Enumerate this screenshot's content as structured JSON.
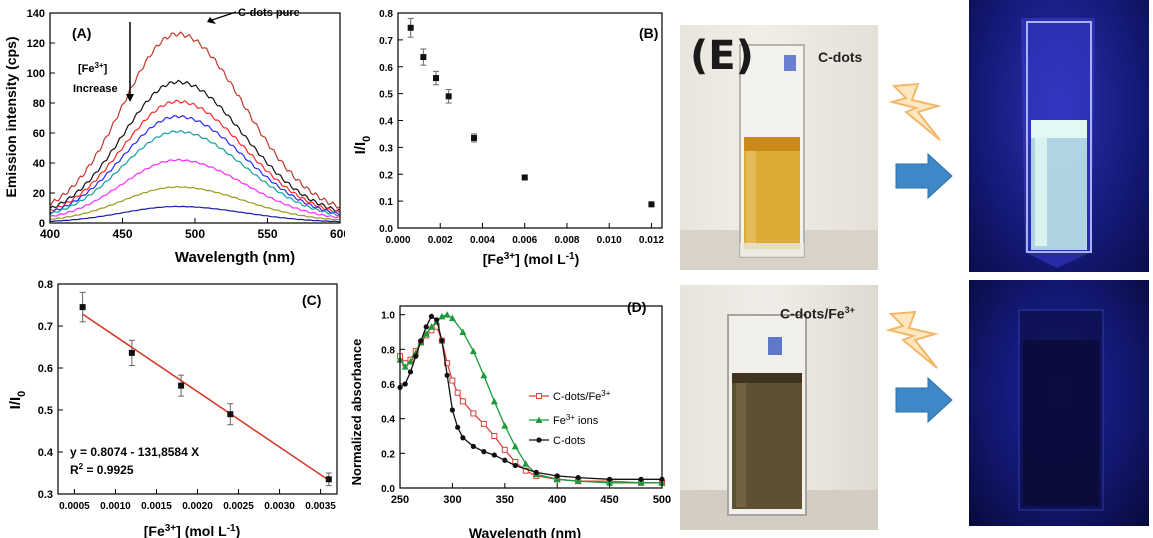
{
  "chart_data": [
    {
      "panel": "(A)",
      "type": "line",
      "xlabel": "Wavelength (nm)",
      "ylabel": "Emission intensity (cps)",
      "xlim": [
        400,
        600
      ],
      "ylim": [
        0,
        140
      ],
      "xticks": [
        400,
        450,
        500,
        550,
        600
      ],
      "yticks": [
        0,
        20,
        40,
        60,
        80,
        100,
        120,
        140
      ],
      "annotations": {
        "pure": "C-dots pure",
        "ion": "[Fe",
        "ion_sup": "3+",
        "ion_close": "]",
        "increase": "Increase"
      },
      "series": [
        {
          "color": "#c0392b",
          "peak_x": 488,
          "peak": 126
        },
        {
          "color": "#111111",
          "peak_x": 488,
          "peak": 94
        },
        {
          "color": "#ff2a2a",
          "peak_x": 488,
          "peak": 81
        },
        {
          "color": "#2a2aff",
          "peak_x": 488,
          "peak": 71
        },
        {
          "color": "#12a0a0",
          "peak_x": 488,
          "peak": 61
        },
        {
          "color": "#ff2aff",
          "peak_x": 488,
          "peak": 42
        },
        {
          "color": "#9a9a1a",
          "peak_x": 488,
          "peak": 24
        },
        {
          "color": "#1a1aaa",
          "peak_x": 488,
          "peak": 11
        }
      ]
    },
    {
      "panel": "(B)",
      "type": "scatter",
      "xlabel": "[Fe",
      "xlabel_sup": "3+",
      "xlabel_rest": "] (mol L",
      "xlabel_exp": "-1",
      "xlabel_end": ")",
      "ylabel": "I/I",
      "ylabel_sub": "0",
      "xlim": [
        0.0,
        0.0125
      ],
      "ylim": [
        0.0,
        0.8
      ],
      "xticks": [
        "0.000",
        "0.002",
        "0.004",
        "0.006",
        "0.008",
        "0.010",
        "0.012"
      ],
      "yticks": [
        "0.0",
        "0.1",
        "0.2",
        "0.3",
        "0.4",
        "0.5",
        "0.6",
        "0.7",
        "0.8"
      ],
      "points": [
        {
          "x": 0.0006,
          "y": 0.745,
          "err": 0.035
        },
        {
          "x": 0.0012,
          "y": 0.636,
          "err": 0.03
        },
        {
          "x": 0.0018,
          "y": 0.558,
          "err": 0.025
        },
        {
          "x": 0.0024,
          "y": 0.49,
          "err": 0.025
        },
        {
          "x": 0.0036,
          "y": 0.335,
          "err": 0.015
        },
        {
          "x": 0.006,
          "y": 0.188,
          "err": 0.008
        },
        {
          "x": 0.012,
          "y": 0.088,
          "err": 0.005
        }
      ]
    },
    {
      "panel": "(C)",
      "type": "scatter",
      "xlabel": "[Fe",
      "xlabel_sup": "3+",
      "xlabel_rest": "] (mol L",
      "xlabel_exp": "-1",
      "xlabel_end": ")",
      "ylabel": "I/I",
      "ylabel_sub": "0",
      "xlim": [
        0.0003,
        0.0037
      ],
      "ylim": [
        0.3,
        0.8
      ],
      "xticks": [
        "0.0005",
        "0.0010",
        "0.0015",
        "0.0020",
        "0.0025",
        "0.0030",
        "0.0035"
      ],
      "yticks": [
        "0.3",
        "0.4",
        "0.5",
        "0.6",
        "0.7",
        "0.8"
      ],
      "fit": {
        "intercept": 0.8074,
        "slope": -131.8584,
        "color": "#d63a2a"
      },
      "equation": "y = 0.8074 - 131,8584 X",
      "r2_label": "R",
      "r2_sup": "2",
      "r2_value": " = 0.9925",
      "points": [
        {
          "x": 0.0006,
          "y": 0.745,
          "err": 0.035
        },
        {
          "x": 0.0012,
          "y": 0.636,
          "err": 0.03
        },
        {
          "x": 0.0018,
          "y": 0.558,
          "err": 0.025
        },
        {
          "x": 0.0024,
          "y": 0.49,
          "err": 0.025
        },
        {
          "x": 0.0036,
          "y": 0.335,
          "err": 0.015
        }
      ]
    },
    {
      "panel": "(D)",
      "type": "line",
      "xlabel": "Wavelength (nm)",
      "ylabel": "Normalized absorbance",
      "xlim": [
        250,
        500
      ],
      "ylim": [
        0.0,
        1.05
      ],
      "xticks": [
        250,
        300,
        350,
        400,
        450,
        500
      ],
      "yticks": [
        "0.0",
        "0.2",
        "0.4",
        "0.6",
        "0.8",
        "1.0"
      ],
      "legend_position": "middle-right",
      "series": [
        {
          "label": "C-dots/Fe",
          "sup": "3+",
          "color": "#e0403a",
          "marker": "open-square",
          "x": [
            250,
            255,
            260,
            265,
            270,
            275,
            280,
            285,
            290,
            295,
            300,
            305,
            310,
            320,
            330,
            340,
            350,
            360,
            370,
            380,
            400,
            420,
            450,
            480,
            500
          ],
          "y": [
            0.76,
            0.72,
            0.74,
            0.79,
            0.84,
            0.88,
            0.91,
            0.93,
            0.85,
            0.72,
            0.62,
            0.55,
            0.5,
            0.43,
            0.37,
            0.3,
            0.22,
            0.15,
            0.1,
            0.07,
            0.05,
            0.04,
            0.04,
            0.03,
            0.03
          ]
        },
        {
          "label": "Fe",
          "sup": "3+",
          "label_rest": " ions",
          "color": "#1a9a3a",
          "marker": "triangle",
          "x": [
            250,
            255,
            260,
            265,
            270,
            275,
            280,
            285,
            290,
            295,
            300,
            310,
            320,
            330,
            340,
            350,
            360,
            370,
            380,
            400,
            420,
            450,
            480,
            500
          ],
          "y": [
            0.74,
            0.7,
            0.73,
            0.78,
            0.84,
            0.89,
            0.93,
            0.96,
            0.99,
            1.0,
            0.98,
            0.9,
            0.79,
            0.65,
            0.5,
            0.36,
            0.24,
            0.14,
            0.08,
            0.05,
            0.04,
            0.03,
            0.03,
            0.03
          ]
        },
        {
          "label": "C-dots",
          "color": "#111111",
          "marker": "circle",
          "x": [
            250,
            255,
            260,
            265,
            270,
            275,
            280,
            285,
            290,
            295,
            300,
            305,
            310,
            320,
            330,
            340,
            350,
            360,
            380,
            400,
            420,
            450,
            480,
            500
          ],
          "y": [
            0.58,
            0.6,
            0.67,
            0.76,
            0.85,
            0.93,
            0.99,
            0.97,
            0.85,
            0.65,
            0.45,
            0.35,
            0.29,
            0.24,
            0.21,
            0.19,
            0.16,
            0.13,
            0.09,
            0.07,
            0.06,
            0.05,
            0.05,
            0.05
          ]
        }
      ]
    }
  ],
  "photos": {
    "panel": "(E)",
    "top_label": "C-dots",
    "bottom_label": "C-dots/Fe",
    "bottom_label_sup": "3+"
  }
}
